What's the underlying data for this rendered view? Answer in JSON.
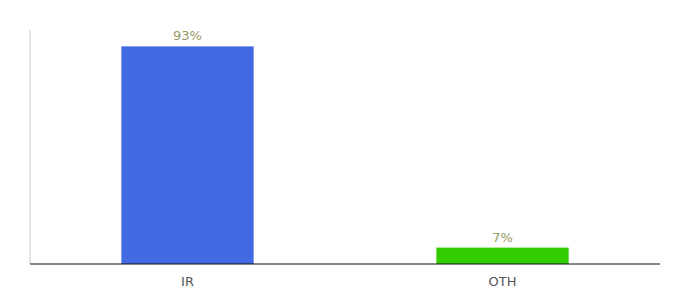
{
  "chart_data": {
    "type": "bar",
    "categories": [
      "IR",
      "OTH"
    ],
    "values": [
      93,
      7
    ],
    "value_labels": [
      "93%",
      "7%"
    ],
    "colors": [
      "#4169e1",
      "#33cc00"
    ],
    "ylim": [
      0,
      100
    ],
    "data_labels": true,
    "tick_labels": "x"
  }
}
